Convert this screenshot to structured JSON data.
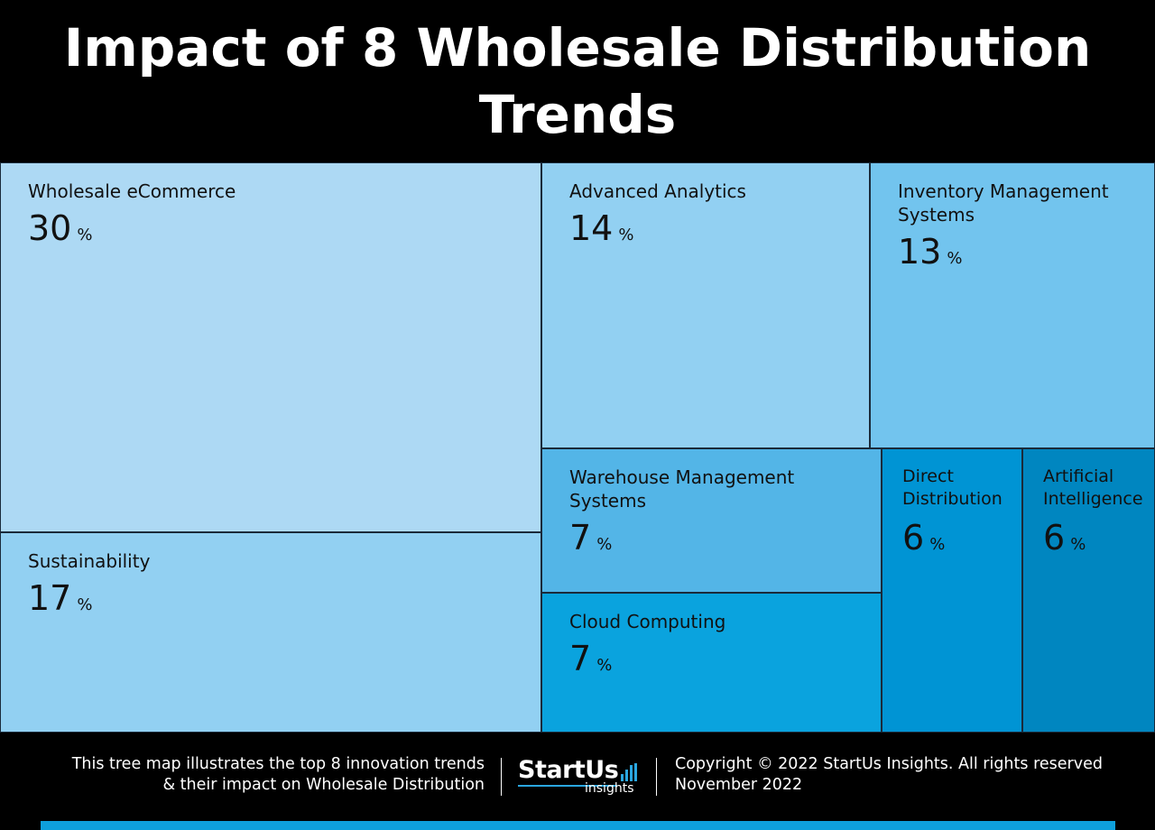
{
  "header": {
    "title": "Impact of 8 Wholesale Distribution Trends"
  },
  "chart_data": {
    "type": "treemap",
    "title": "Impact of 8 Wholesale Distribution Trends",
    "unit": "%",
    "items": [
      {
        "name": "Wholesale eCommerce",
        "value": 30,
        "color": "#add9f4"
      },
      {
        "name": "Sustainability",
        "value": 17,
        "color": "#92d0f2"
      },
      {
        "name": "Advanced Analytics",
        "value": 14,
        "color": "#92d0f2"
      },
      {
        "name": "Inventory Management Systems",
        "value": 13,
        "color": "#72c4ee"
      },
      {
        "name": "Warehouse Management Systems",
        "value": 7,
        "color": "#53b5e7"
      },
      {
        "name": "Cloud Computing",
        "value": 7,
        "color": "#0aa3de"
      },
      {
        "name": "Direct Distribution",
        "value": 6,
        "color": "#0094d4"
      },
      {
        "name": "Artificial Intelligence",
        "value": 6,
        "color": "#0086c0"
      }
    ]
  },
  "footer": {
    "description_line1": "This tree map illustrates the top 8 innovation trends",
    "description_line2": "& their impact on Wholesale Distribution",
    "logo_text": "StartUs",
    "logo_sub": "insights",
    "copyright": "Copyright © 2022 StartUs Insights. All rights reserved",
    "date": "November 2022",
    "accent_color": "#0ea0dc"
  }
}
